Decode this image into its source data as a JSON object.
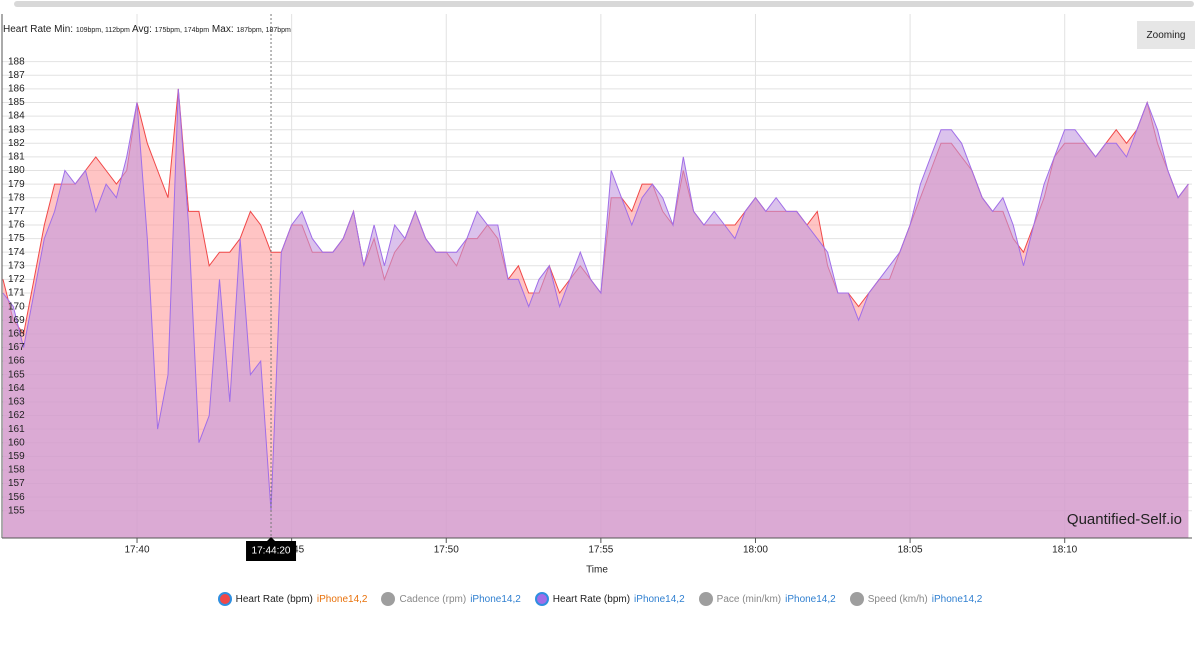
{
  "chart_data": {
    "type": "area",
    "title": "Heart Rate",
    "stats": [
      {
        "label": "Min:",
        "value": "109bpm, 112bpm"
      },
      {
        "label": "Avg:",
        "value": "175bpm, 174bpm"
      },
      {
        "label": "Max:",
        "value": "187bpm, 187bpm"
      }
    ],
    "x_label": "Time",
    "button": "Zooming",
    "watermark": "Quantified-Self.io",
    "crosshair": "17:44:20",
    "xlim": [
      "17:35:38",
      "18:14:07"
    ],
    "xticks": [
      "17:40",
      "17:45",
      "17:50",
      "17:55",
      "18:00",
      "18:05",
      "18:10"
    ],
    "ylim": [
      153,
      191.5
    ],
    "yticks": [
      155,
      156,
      157,
      158,
      159,
      160,
      161,
      162,
      163,
      164,
      165,
      166,
      167,
      168,
      169,
      170,
      171,
      172,
      173,
      174,
      175,
      176,
      177,
      178,
      179,
      180,
      181,
      182,
      183,
      184,
      185,
      186,
      187,
      188
    ],
    "grid": true,
    "x": [
      "17:35:40",
      "17:36:00",
      "17:36:20",
      "17:36:40",
      "17:37:00",
      "17:37:20",
      "17:37:40",
      "17:38:00",
      "17:38:20",
      "17:38:40",
      "17:39:00",
      "17:39:20",
      "17:39:40",
      "17:40:00",
      "17:40:20",
      "17:40:40",
      "17:41:00",
      "17:41:20",
      "17:41:40",
      "17:42:00",
      "17:42:20",
      "17:42:40",
      "17:43:00",
      "17:43:20",
      "17:43:40",
      "17:44:00",
      "17:44:20",
      "17:44:40",
      "17:45:00",
      "17:45:20",
      "17:45:40",
      "17:46:00",
      "17:46:20",
      "17:46:40",
      "17:47:00",
      "17:47:20",
      "17:47:40",
      "17:48:00",
      "17:48:20",
      "17:48:40",
      "17:49:00",
      "17:49:20",
      "17:49:40",
      "17:50:00",
      "17:50:20",
      "17:50:40",
      "17:51:00",
      "17:51:20",
      "17:51:40",
      "17:52:00",
      "17:52:20",
      "17:52:40",
      "17:53:00",
      "17:53:20",
      "17:53:40",
      "17:54:00",
      "17:54:20",
      "17:54:40",
      "17:55:00",
      "17:55:20",
      "17:55:40",
      "17:56:00",
      "17:56:20",
      "17:56:40",
      "17:57:00",
      "17:57:20",
      "17:57:40",
      "17:58:00",
      "17:58:20",
      "17:58:40",
      "17:59:00",
      "17:59:20",
      "17:59:40",
      "18:00:00",
      "18:00:20",
      "18:00:40",
      "18:01:00",
      "18:01:20",
      "18:01:40",
      "18:02:00",
      "18:02:20",
      "18:02:40",
      "18:03:00",
      "18:03:20",
      "18:03:40",
      "18:04:00",
      "18:04:20",
      "18:04:40",
      "18:05:00",
      "18:05:20",
      "18:05:40",
      "18:06:00",
      "18:06:20",
      "18:06:40",
      "18:07:00",
      "18:07:20",
      "18:07:40",
      "18:08:00",
      "18:08:20",
      "18:08:40",
      "18:09:00",
      "18:09:20",
      "18:09:40",
      "18:10:00",
      "18:10:20",
      "18:10:40",
      "18:11:00",
      "18:11:20",
      "18:11:40",
      "18:12:00",
      "18:12:20",
      "18:12:40",
      "18:13:00",
      "18:13:20",
      "18:13:40",
      "18:14:00"
    ],
    "series": [
      {
        "name": "Heart Rate (bpm)",
        "source": "iPhone14,2",
        "source_color": "#e8720c",
        "color": "#f04848",
        "fill": "#ff9c9c",
        "icon_ring": "#2f8fe0",
        "values": [
          172,
          169,
          168,
          172,
          176,
          179,
          179,
          179,
          180,
          181,
          180,
          179,
          180,
          185,
          182,
          180,
          178,
          186,
          177,
          177,
          173,
          174,
          174,
          175,
          177,
          176,
          174,
          174,
          176,
          176,
          174,
          174,
          174,
          175,
          177,
          173,
          175,
          172,
          174,
          175,
          177,
          175,
          174,
          174,
          173,
          175,
          175,
          176,
          175,
          172,
          173,
          171,
          171,
          173,
          171,
          172,
          173,
          172,
          171,
          178,
          178,
          177,
          179,
          179,
          177,
          176,
          180,
          177,
          176,
          176,
          176,
          176,
          177,
          178,
          177,
          177,
          177,
          177,
          176,
          177,
          173,
          171,
          171,
          170,
          171,
          172,
          172,
          174,
          176,
          178,
          180,
          182,
          182,
          181,
          180,
          178,
          177,
          177,
          175,
          174,
          176,
          178,
          181,
          182,
          182,
          182,
          181,
          182,
          183,
          182,
          183,
          185,
          182,
          180,
          178,
          179
        ]
      },
      {
        "name": "Cadence (rpm)",
        "source": "iPhone14,2",
        "source_color": "#2f7fd0",
        "color": "#9e9e9e",
        "visible": false
      },
      {
        "name": "Heart Rate (bpm)",
        "source": "iPhone14,2",
        "source_color": "#2f7fd0",
        "color": "#a06ee8",
        "fill": "#c39ae0",
        "icon_ring": "#2f8fe0",
        "values": [
          171,
          170,
          167,
          171,
          175,
          177,
          180,
          179,
          180,
          177,
          179,
          178,
          181,
          185,
          175,
          161,
          165,
          186,
          176,
          160,
          162,
          172,
          163,
          175,
          165,
          166,
          155,
          174,
          176,
          177,
          175,
          174,
          174,
          175,
          177,
          173,
          176,
          173,
          176,
          175,
          177,
          175,
          174,
          174,
          174,
          175,
          177,
          176,
          176,
          172,
          172,
          170,
          172,
          173,
          170,
          172,
          174,
          172,
          171,
          180,
          178,
          176,
          178,
          179,
          178,
          176,
          181,
          177,
          176,
          177,
          176,
          175,
          177,
          178,
          177,
          178,
          177,
          177,
          176,
          175,
          174,
          171,
          171,
          169,
          171,
          172,
          173,
          174,
          176,
          179,
          181,
          183,
          183,
          182,
          180,
          178,
          177,
          178,
          176,
          173,
          176,
          179,
          181,
          183,
          183,
          182,
          181,
          182,
          182,
          181,
          183,
          185,
          183,
          180,
          178,
          179
        ]
      },
      {
        "name": "Pace (min/km)",
        "source": "iPhone14,2",
        "source_color": "#2f7fd0",
        "color": "#9e9e9e",
        "visible": false
      },
      {
        "name": "Speed (km/h)",
        "source": "iPhone14,2",
        "source_color": "#2f7fd0",
        "color": "#9e9e9e",
        "visible": false
      }
    ]
  }
}
